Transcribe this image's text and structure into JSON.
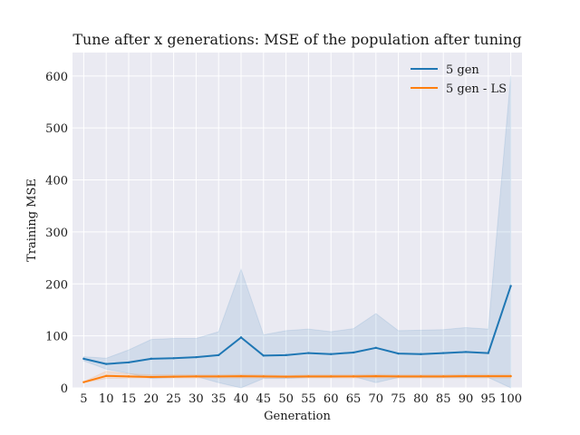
{
  "chart_data": {
    "type": "line",
    "title": "Tune after x generations: MSE of the population after tuning",
    "xlabel": "Generation",
    "ylabel": "Training MSE",
    "x": [
      5,
      10,
      15,
      20,
      25,
      30,
      35,
      40,
      45,
      50,
      55,
      60,
      65,
      70,
      75,
      80,
      85,
      90,
      95,
      100
    ],
    "ylim": [
      0,
      645
    ],
    "yticks": [
      0,
      100,
      200,
      300,
      400,
      500,
      600
    ],
    "grid": true,
    "legend_position": "top-right",
    "background": "#eaeaf2",
    "series": [
      {
        "name": "5 gen",
        "color": "#1f77b4",
        "values": [
          56,
          46,
          49,
          56,
          57,
          59,
          63,
          97,
          62,
          63,
          67,
          65,
          68,
          77,
          66,
          65,
          67,
          69,
          67,
          196
        ],
        "band_lower": [
          52,
          36,
          28,
          18,
          20,
          22,
          10,
          -35,
          18,
          18,
          20,
          20,
          22,
          10,
          20,
          20,
          20,
          20,
          20,
          0
        ],
        "band_upper": [
          60,
          57,
          73,
          93,
          95,
          95,
          108,
          228,
          102,
          110,
          113,
          108,
          114,
          143,
          110,
          111,
          112,
          116,
          113,
          600
        ]
      },
      {
        "name": "5 gen - LS",
        "color": "#ff7f0e",
        "values": [
          11,
          23,
          22,
          21,
          21.5,
          22,
          22,
          22.5,
          22,
          21.5,
          22,
          22,
          22,
          22.5,
          22,
          22,
          22,
          22.5,
          22.5,
          22.5
        ],
        "band_lower": [
          10,
          18,
          19,
          19,
          19,
          19,
          19,
          19,
          19,
          19,
          19,
          19,
          19,
          19,
          19,
          19,
          19,
          19,
          19,
          19
        ],
        "band_upper": [
          12,
          32,
          27,
          25,
          25,
          25,
          25,
          26,
          25,
          24,
          25,
          25,
          25,
          26,
          25,
          25,
          25,
          26,
          26,
          26
        ]
      }
    ]
  }
}
